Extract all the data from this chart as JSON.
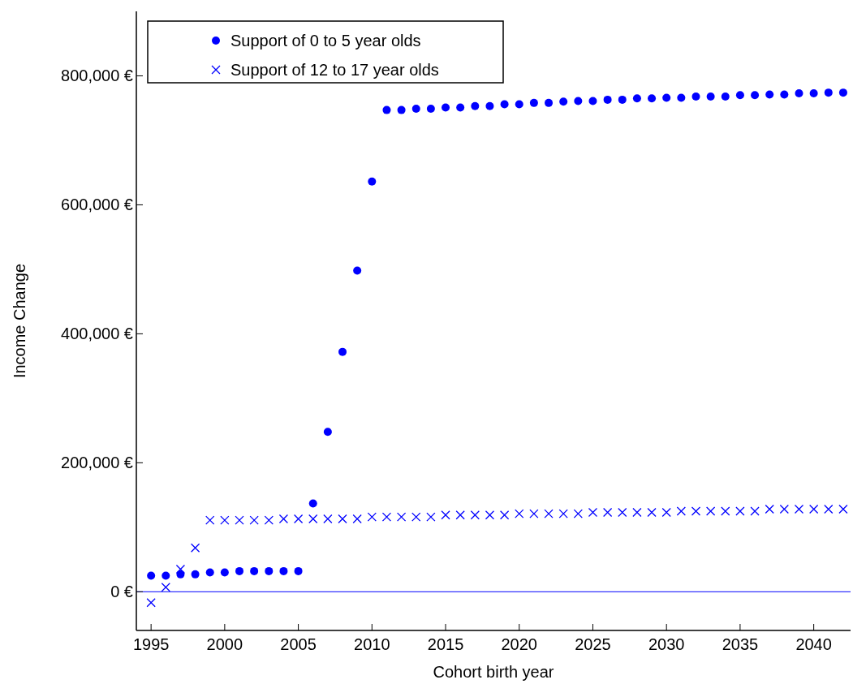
{
  "chart_data": {
    "type": "scatter",
    "xlabel": "Cohort birth year",
    "ylabel": "Income Change",
    "x": [
      1995,
      1996,
      1997,
      1998,
      1999,
      2000,
      2001,
      2002,
      2003,
      2004,
      2005,
      2006,
      2007,
      2008,
      2009,
      2010,
      2011,
      2012,
      2013,
      2014,
      2015,
      2016,
      2017,
      2018,
      2019,
      2020,
      2021,
      2022,
      2023,
      2024,
      2025,
      2026,
      2027,
      2028,
      2029,
      2030,
      2031,
      2032,
      2033,
      2034,
      2035,
      2036,
      2037,
      2038,
      2039,
      2040,
      2041,
      2042
    ],
    "series": [
      {
        "name": "Support of 0 to 5 year olds",
        "color": "#0000ff",
        "marker": "circle",
        "values": [
          25000,
          25000,
          27000,
          27000,
          30000,
          30000,
          32000,
          32000,
          32000,
          32000,
          32000,
          137000,
          248000,
          372000,
          498000,
          636000,
          747000,
          747000,
          749000,
          749000,
          751000,
          751000,
          753000,
          753000,
          756000,
          756000,
          758000,
          758000,
          760000,
          761000,
          761000,
          763000,
          763000,
          765000,
          765000,
          766000,
          766000,
          768000,
          768000,
          768000,
          770000,
          770000,
          771000,
          771000,
          773000,
          773000,
          774000,
          774000
        ]
      },
      {
        "name": "Support of 12 to 17 year olds",
        "color": "#0000ff",
        "marker": "cross",
        "values": [
          -17000,
          7000,
          35000,
          68000,
          111000,
          111000,
          111000,
          111000,
          111000,
          113000,
          113000,
          113000,
          113000,
          113000,
          113000,
          116000,
          116000,
          116000,
          116000,
          116000,
          119000,
          119000,
          119000,
          119000,
          119000,
          121000,
          121000,
          121000,
          121000,
          121000,
          123000,
          123000,
          123000,
          123000,
          123000,
          123000,
          125000,
          125000,
          125000,
          125000,
          125000,
          125000,
          128000,
          128000,
          128000,
          128000,
          128000,
          128000
        ]
      }
    ],
    "xlim": [
      1994,
      2042.5
    ],
    "ylim": [
      -60000,
      900000
    ],
    "xticks": [
      1995,
      2000,
      2005,
      2010,
      2015,
      2020,
      2025,
      2030,
      2035,
      2040
    ],
    "yticks": [
      {
        "value": 0,
        "label": "0 €"
      },
      {
        "value": 200000,
        "label": "200,000 €"
      },
      {
        "value": 400000,
        "label": "400,000 €"
      },
      {
        "value": 600000,
        "label": "600,000 €"
      },
      {
        "value": 800000,
        "label": "800,000 €"
      }
    ],
    "ref_lines": [
      {
        "axis": "y",
        "value": 0,
        "color": "#0000ff"
      }
    ],
    "grid": false,
    "legend": "top left"
  }
}
